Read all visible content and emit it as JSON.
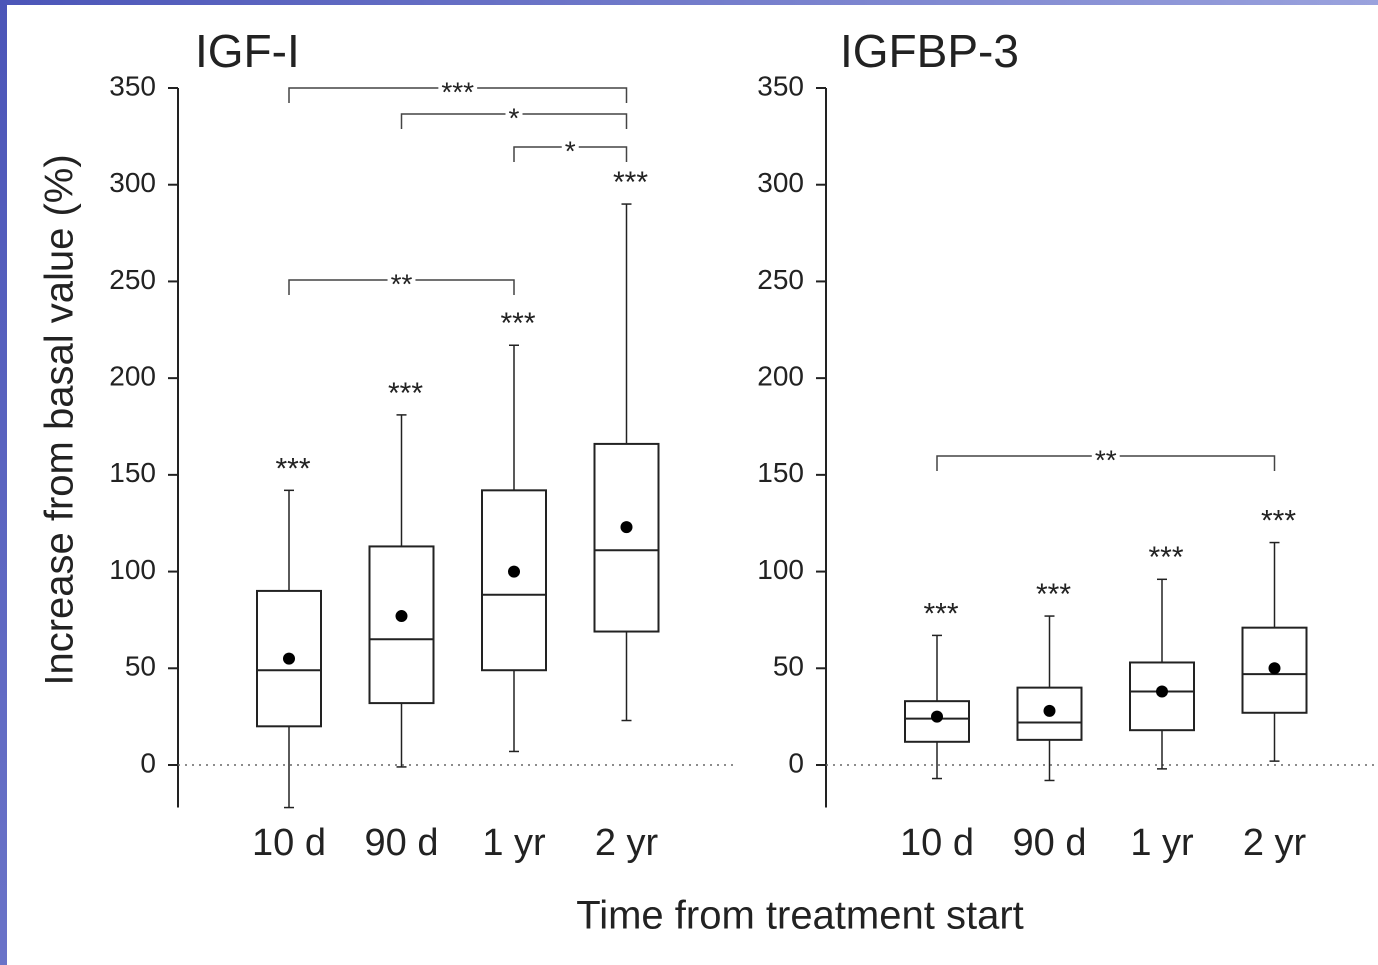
{
  "chart_data": [
    {
      "type": "box",
      "title": "IGF-I",
      "ylabel": "Increase from basal value (%)",
      "xlabel": "Time from treatment start",
      "categories": [
        "10 d",
        "90 d",
        "1 yr",
        "2 yr"
      ],
      "whisker_low": [
        -22,
        -1,
        7,
        23
      ],
      "q1": [
        20,
        32,
        49,
        69
      ],
      "median": [
        49,
        65,
        88,
        111
      ],
      "q3": [
        90,
        113,
        142,
        166
      ],
      "whisker_high": [
        142,
        181,
        217,
        290
      ],
      "mean": [
        55,
        77,
        100,
        123
      ],
      "significance": [
        "***",
        "***",
        "***",
        "***"
      ],
      "brackets": [
        {
          "label": "***"
        },
        {
          "label": "*"
        },
        {
          "label": "*"
        },
        {
          "label": "**"
        }
      ],
      "ylim": [
        -22,
        350
      ],
      "yticks": [
        0,
        50,
        100,
        150,
        200,
        250,
        300,
        350
      ],
      "zero_line": true,
      "color": "#222222"
    },
    {
      "type": "box",
      "title": "IGFBP-3",
      "categories": [
        "10 d",
        "90 d",
        "1 yr",
        "2 yr"
      ],
      "whisker_low": [
        -7,
        -8,
        -2,
        2
      ],
      "q1": [
        12,
        13,
        18,
        27
      ],
      "median": [
        24,
        22,
        38,
        47
      ],
      "q3": [
        33,
        40,
        53,
        71
      ],
      "whisker_high": [
        67,
        77,
        96,
        115
      ],
      "mean": [
        25,
        28,
        38,
        50
      ],
      "significance": [
        "***",
        "***",
        "***",
        "***"
      ],
      "brackets": [
        {
          "label": "**"
        }
      ],
      "ylim": [
        -22,
        350
      ],
      "yticks": [
        0,
        50,
        100,
        150,
        200,
        250,
        300,
        350
      ],
      "zero_line": true,
      "color": "#222222"
    }
  ]
}
